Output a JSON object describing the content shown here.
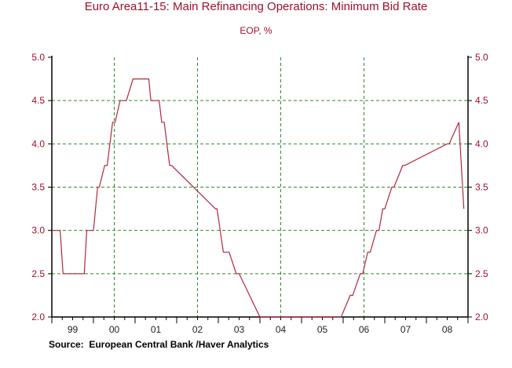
{
  "chart_data": {
    "type": "line",
    "title": "Euro Area11-15: Main Refinancing Operations: Minimum Bid Rate",
    "subtitle": "EOP, %",
    "source": "Source:  European Central Bank /Haver Analytics",
    "xlabel": "",
    "ylabel": "",
    "ylim": [
      2.0,
      5.0
    ],
    "y_ticks": [
      "5.0",
      "4.5",
      "4.0",
      "3.5",
      "3.0",
      "2.5",
      "2.0"
    ],
    "x_ticks": [
      "99",
      "00",
      "01",
      "02",
      "03",
      "04",
      "05",
      "06",
      "07",
      "08"
    ],
    "xlim": [
      1999.0,
      2009.0
    ],
    "grid": "dashed",
    "colors": {
      "line": "#b0283c",
      "grid": "#2f8a2f",
      "axis_text": "#a0102a",
      "tick_text": "#222222"
    },
    "series": [
      {
        "x": [
          1999.0,
          1999.2,
          1999.27,
          1999.78,
          1999.84,
          2000.0,
          2000.1,
          2000.14,
          2000.27,
          2000.33,
          2000.46,
          2000.52,
          2000.64,
          2000.79,
          2000.95,
          2001.33,
          2001.38,
          2001.58,
          2001.64,
          2001.7,
          2001.83,
          2001.88,
          2002.93,
          2002.97,
          2003.12,
          2003.26,
          2003.43,
          2003.5,
          2004.0,
          2005.0,
          2005.92,
          2005.95,
          2006.17,
          2006.23,
          2006.41,
          2006.47,
          2006.59,
          2006.65,
          2006.8,
          2006.86,
          2006.95,
          2007.0,
          2007.17,
          2007.22,
          2007.43,
          2007.48,
          2008.5,
          2008.55,
          2008.78,
          2008.9
        ],
        "y": [
          3.0,
          3.0,
          2.5,
          2.5,
          3.0,
          3.0,
          3.5,
          3.5,
          3.75,
          3.75,
          4.25,
          4.25,
          4.5,
          4.5,
          4.75,
          4.75,
          4.5,
          4.5,
          4.25,
          4.25,
          3.75,
          3.75,
          3.25,
          3.25,
          2.75,
          2.75,
          2.5,
          2.5,
          2.0,
          2.0,
          2.0,
          2.0,
          2.25,
          2.25,
          2.5,
          2.5,
          2.75,
          2.75,
          3.0,
          3.0,
          3.25,
          3.25,
          3.5,
          3.5,
          3.75,
          3.75,
          4.0,
          4.0,
          4.25,
          3.25
        ]
      }
    ]
  }
}
